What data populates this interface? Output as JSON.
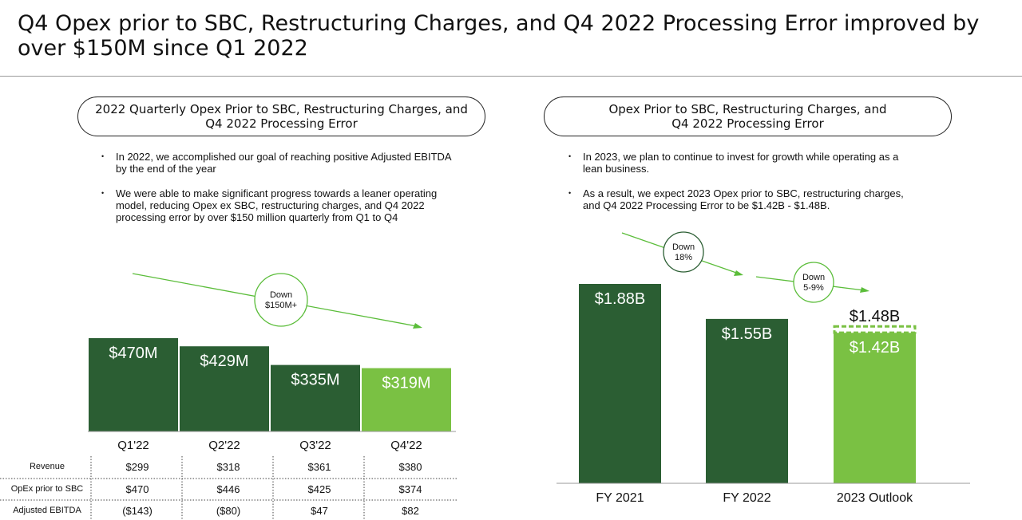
{
  "title": "Q4 Opex prior to SBC, Restructuring Charges, and Q4 2022 Processing Error improved by over $150M since Q1 2022",
  "colors": {
    "dark_green": "#2b5e33",
    "light_green": "#7ac143",
    "arrow_green": "#5bbd3a",
    "circle_green": "#5bbd3a"
  },
  "left": {
    "pill_line1": "2022 Quarterly Opex Prior to SBC, Restructuring Charges, and",
    "pill_line2": "Q4 2022 Processing Error",
    "bullets": [
      {
        "line1": "In 2022, we accomplished our goal of reaching positive Adjusted EBITDA",
        "line2": "by the end of the year",
        "line3": ""
      },
      {
        "line1": "We were able to make significant progress towards a leaner operating",
        "line2": "model, reducing Opex ex SBC, restructuring charges, and Q4 2022",
        "line3": "processing error by over $150 million quarterly from Q1 to Q4"
      }
    ],
    "callout": {
      "line1": "Down",
      "line2": "$150M+"
    },
    "table": {
      "row_labels": [
        "Revenue",
        "OpEx prior to SBC",
        "Adjusted EBITDA"
      ],
      "rows": [
        [
          "$299",
          "$318",
          "$361",
          "$380"
        ],
        [
          "$470",
          "$446",
          "$425",
          "$374"
        ],
        [
          "($143)",
          "($80)",
          "$47",
          "$82"
        ]
      ]
    }
  },
  "right": {
    "pill_line1": "Opex Prior to SBC, Restructuring Charges, and",
    "pill_line2": "Q4 2022 Processing Error",
    "bullets": [
      {
        "line1": "In 2023, we plan to continue to invest for growth while operating as a",
        "line2": "lean business.",
        "line3": ""
      },
      {
        "line1": "As a result, we expect 2023 Opex prior to SBC, restructuring charges,",
        "line2": "and Q4 2022 Processing Error to be $1.42B - $1.48B.",
        "line3": ""
      }
    ],
    "callout1": {
      "line1": "Down",
      "line2": "18%"
    },
    "callout2": {
      "line1": "Down",
      "line2": "5-9%"
    }
  },
  "chart_data": [
    {
      "type": "bar",
      "categories": [
        "Q1'22",
        "Q2'22",
        "Q3'22",
        "Q4'22"
      ],
      "values": [
        470,
        429,
        335,
        319
      ],
      "labels": [
        "$470M",
        "$429M",
        "$335M",
        "$319M"
      ],
      "ylim": [
        0,
        470
      ],
      "highlight": [
        false,
        false,
        false,
        true
      ]
    },
    {
      "type": "bar",
      "categories": [
        "FY 2021",
        "FY 2022",
        "2023 Outlook"
      ],
      "values": [
        1.88,
        1.55,
        1.42
      ],
      "labels": [
        "$1.88B",
        "$1.55B",
        "$1.42B"
      ],
      "ylim": [
        0,
        1.88
      ],
      "highlight": [
        false,
        false,
        true
      ],
      "range_top": {
        "value": 1.48,
        "label": "$1.48B"
      }
    }
  ]
}
